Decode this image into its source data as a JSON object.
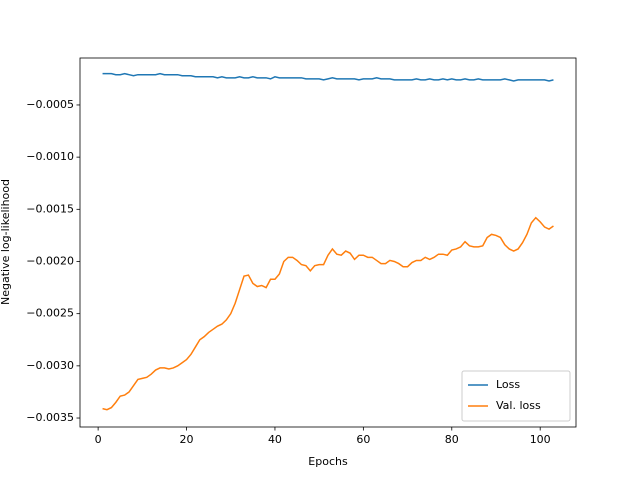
{
  "chart_data": {
    "type": "line",
    "xlabel": "Epochs",
    "ylabel": "Negative log-likelihood",
    "x": [
      1,
      2,
      3,
      4,
      5,
      6,
      7,
      8,
      9,
      10,
      11,
      12,
      13,
      14,
      15,
      16,
      17,
      18,
      19,
      20,
      21,
      22,
      23,
      24,
      25,
      26,
      27,
      28,
      29,
      30,
      31,
      32,
      33,
      34,
      35,
      36,
      37,
      38,
      39,
      40,
      41,
      42,
      43,
      44,
      45,
      46,
      47,
      48,
      49,
      50,
      51,
      52,
      53,
      54,
      55,
      56,
      57,
      58,
      59,
      60,
      61,
      62,
      63,
      64,
      65,
      66,
      67,
      68,
      69,
      70,
      71,
      72,
      73,
      74,
      75,
      76,
      77,
      78,
      79,
      80,
      81,
      82,
      83,
      84,
      85,
      86,
      87,
      88,
      89,
      90,
      91,
      92,
      93,
      94,
      95,
      96,
      97,
      98,
      99,
      100,
      101,
      102,
      103
    ],
    "series": [
      {
        "name": "Loss",
        "color": "#1f77b4",
        "values": [
          -0.0002,
          -0.0002,
          -0.0002,
          -0.00021,
          -0.00021,
          -0.0002,
          -0.00021,
          -0.00022,
          -0.00021,
          -0.00021,
          -0.00021,
          -0.00021,
          -0.00021,
          -0.0002,
          -0.00021,
          -0.00021,
          -0.00021,
          -0.00021,
          -0.00022,
          -0.00022,
          -0.00022,
          -0.00023,
          -0.00023,
          -0.00023,
          -0.00023,
          -0.00023,
          -0.00024,
          -0.00023,
          -0.00024,
          -0.00024,
          -0.00024,
          -0.00023,
          -0.00024,
          -0.00024,
          -0.00023,
          -0.00024,
          -0.00024,
          -0.00024,
          -0.00025,
          -0.00023,
          -0.00024,
          -0.00024,
          -0.00024,
          -0.00024,
          -0.00024,
          -0.00024,
          -0.00025,
          -0.00025,
          -0.00025,
          -0.00025,
          -0.00026,
          -0.00025,
          -0.00024,
          -0.00025,
          -0.00025,
          -0.00025,
          -0.00025,
          -0.00025,
          -0.00026,
          -0.00025,
          -0.00025,
          -0.00025,
          -0.00024,
          -0.00025,
          -0.00025,
          -0.00025,
          -0.00026,
          -0.00026,
          -0.00026,
          -0.00026,
          -0.00026,
          -0.00025,
          -0.00026,
          -0.00026,
          -0.00025,
          -0.00026,
          -0.00026,
          -0.00025,
          -0.00026,
          -0.00025,
          -0.00026,
          -0.00026,
          -0.00025,
          -0.00026,
          -0.00026,
          -0.00025,
          -0.00026,
          -0.00026,
          -0.00026,
          -0.00026,
          -0.00026,
          -0.00025,
          -0.00026,
          -0.00027,
          -0.00026,
          -0.00026,
          -0.00026,
          -0.00026,
          -0.00026,
          -0.00026,
          -0.00026,
          -0.00027,
          -0.00026
        ]
      },
      {
        "name": "Val. loss",
        "color": "#ff7f0e",
        "values": [
          -0.00341,
          -0.00342,
          -0.0034,
          -0.00335,
          -0.00329,
          -0.00328,
          -0.00325,
          -0.00319,
          -0.00313,
          -0.00312,
          -0.00311,
          -0.00308,
          -0.00304,
          -0.00302,
          -0.00302,
          -0.00303,
          -0.00302,
          -0.003,
          -0.00297,
          -0.00294,
          -0.00289,
          -0.00282,
          -0.00275,
          -0.00272,
          -0.00268,
          -0.00265,
          -0.00262,
          -0.0026,
          -0.00256,
          -0.0025,
          -0.0024,
          -0.00227,
          -0.00214,
          -0.00213,
          -0.00221,
          -0.00224,
          -0.00223,
          -0.00225,
          -0.00217,
          -0.00217,
          -0.00212,
          -0.002,
          -0.00196,
          -0.00196,
          -0.00199,
          -0.00203,
          -0.00204,
          -0.00209,
          -0.00204,
          -0.00203,
          -0.00203,
          -0.00194,
          -0.00188,
          -0.00193,
          -0.00194,
          -0.0019,
          -0.00192,
          -0.00198,
          -0.00194,
          -0.00194,
          -0.00196,
          -0.00196,
          -0.00199,
          -0.00202,
          -0.00202,
          -0.00199,
          -0.002,
          -0.00202,
          -0.00205,
          -0.00205,
          -0.00201,
          -0.00199,
          -0.00199,
          -0.00196,
          -0.00198,
          -0.00196,
          -0.00193,
          -0.00193,
          -0.00194,
          -0.00189,
          -0.00188,
          -0.00186,
          -0.00181,
          -0.00185,
          -0.00186,
          -0.00186,
          -0.00185,
          -0.00177,
          -0.00174,
          -0.00175,
          -0.00177,
          -0.00184,
          -0.00188,
          -0.0019,
          -0.00188,
          -0.00182,
          -0.00174,
          -0.00163,
          -0.00158,
          -0.00162,
          -0.00167,
          -0.00169,
          -0.00166
        ]
      }
    ],
    "xlim": [
      -4.1,
      108.1
    ],
    "ylim": [
      -0.003586,
      -5e-05
    ],
    "xticks": [
      0,
      20,
      40,
      60,
      80,
      100
    ],
    "yticks": [
      {
        "value": -0.0035,
        "label": "−0.0035"
      },
      {
        "value": -0.003,
        "label": "−0.0030"
      },
      {
        "value": -0.0025,
        "label": "−0.0025"
      },
      {
        "value": -0.002,
        "label": "−0.0020"
      },
      {
        "value": -0.0015,
        "label": "−0.0015"
      },
      {
        "value": -0.001,
        "label": "−0.0010"
      },
      {
        "value": -0.0005,
        "label": "−0.0005"
      }
    ],
    "grid": false,
    "legend": "lower right"
  }
}
